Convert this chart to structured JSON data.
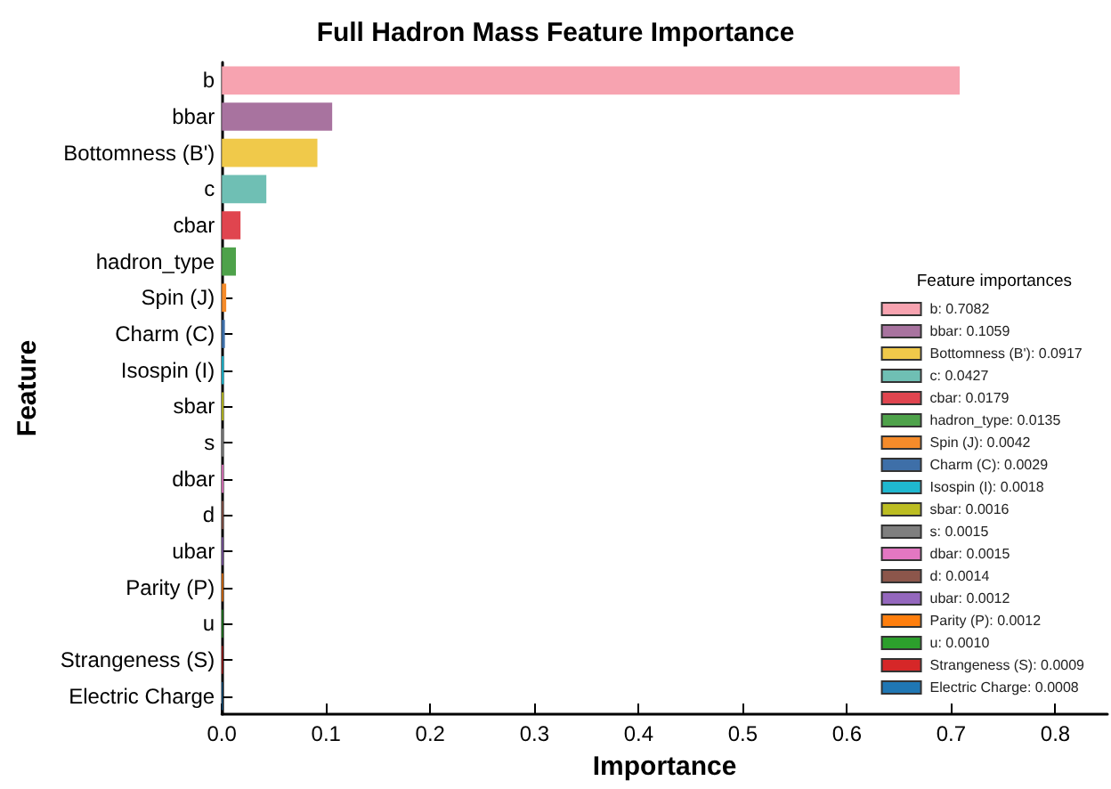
{
  "chart_data": {
    "type": "bar",
    "orientation": "horizontal",
    "title": "Full Hadron Mass Feature Importance",
    "xlabel": "Importance",
    "ylabel": "Feature",
    "legend_title": "Feature importances",
    "legend": "bottom right",
    "grid": false,
    "categories": [
      "b",
      "bbar",
      "Bottomness (B')",
      "c",
      "cbar",
      "hadron_type",
      "Spin (J)",
      "Charm (C)",
      "Isospin (I)",
      "sbar",
      "s",
      "dbar",
      "d",
      "ubar",
      "Parity (P)",
      "u",
      "Strangeness (S)",
      "Electric Charge"
    ],
    "xlim": [
      0,
      0.85
    ],
    "xticks": [
      {
        "value": 0,
        "label": "0.0"
      },
      0.1,
      0.2,
      0.3,
      0.4,
      0.5,
      0.6,
      0.7,
      0.8
    ],
    "series": [
      {
        "name": "b: 0.7082",
        "color": "#f7a3b0",
        "values": [
          0.7082,
          null,
          null,
          null,
          null,
          null,
          null,
          null,
          null,
          null,
          null,
          null,
          null,
          null,
          null,
          null,
          null,
          null
        ]
      },
      {
        "name": "bbar: 0.1059",
        "color": "#a8739f",
        "values": [
          null,
          0.1059,
          null,
          null,
          null,
          null,
          null,
          null,
          null,
          null,
          null,
          null,
          null,
          null,
          null,
          null,
          null,
          null
        ]
      },
      {
        "name": "Bottomness (B'): 0.0917",
        "color": "#f0c94a",
        "values": [
          null,
          null,
          0.0917,
          null,
          null,
          null,
          null,
          null,
          null,
          null,
          null,
          null,
          null,
          null,
          null,
          null,
          null,
          null
        ]
      },
      {
        "name": "c: 0.0427",
        "color": "#6fbfb4",
        "values": [
          null,
          null,
          null,
          0.0427,
          null,
          null,
          null,
          null,
          null,
          null,
          null,
          null,
          null,
          null,
          null,
          null,
          null,
          null
        ]
      },
      {
        "name": "cbar: 0.0179",
        "color": "#e0454f",
        "values": [
          null,
          null,
          null,
          null,
          0.0179,
          null,
          null,
          null,
          null,
          null,
          null,
          null,
          null,
          null,
          null,
          null,
          null,
          null
        ]
      },
      {
        "name": "hadron_type: 0.0135",
        "color": "#4ea24a",
        "values": [
          null,
          null,
          null,
          null,
          null,
          0.0135,
          null,
          null,
          null,
          null,
          null,
          null,
          null,
          null,
          null,
          null,
          null,
          null
        ]
      },
      {
        "name": "Spin (J): 0.0042",
        "color": "#f58b2a",
        "values": [
          null,
          null,
          null,
          null,
          null,
          null,
          0.0042,
          null,
          null,
          null,
          null,
          null,
          null,
          null,
          null,
          null,
          null,
          null
        ]
      },
      {
        "name": "Charm (C): 0.0029",
        "color": "#3e6fa8",
        "values": [
          null,
          null,
          null,
          null,
          null,
          null,
          null,
          0.0029,
          null,
          null,
          null,
          null,
          null,
          null,
          null,
          null,
          null,
          null
        ]
      },
      {
        "name": "Isospin (I): 0.0018",
        "color": "#1fb8d0",
        "values": [
          null,
          null,
          null,
          null,
          null,
          null,
          null,
          null,
          0.0018,
          null,
          null,
          null,
          null,
          null,
          null,
          null,
          null,
          null
        ]
      },
      {
        "name": "sbar: 0.0016",
        "color": "#bcbd22",
        "values": [
          null,
          null,
          null,
          null,
          null,
          null,
          null,
          null,
          null,
          0.0016,
          null,
          null,
          null,
          null,
          null,
          null,
          null,
          null
        ]
      },
      {
        "name": "s: 0.0015",
        "color": "#7f7f7f",
        "values": [
          null,
          null,
          null,
          null,
          null,
          null,
          null,
          null,
          null,
          null,
          0.0015,
          null,
          null,
          null,
          null,
          null,
          null,
          null
        ]
      },
      {
        "name": "dbar: 0.0015",
        "color": "#e377c2",
        "values": [
          null,
          null,
          null,
          null,
          null,
          null,
          null,
          null,
          null,
          null,
          null,
          0.0015,
          null,
          null,
          null,
          null,
          null,
          null
        ]
      },
      {
        "name": "d: 0.0014",
        "color": "#8c564b",
        "values": [
          null,
          null,
          null,
          null,
          null,
          null,
          null,
          null,
          null,
          null,
          null,
          null,
          0.0014,
          null,
          null,
          null,
          null,
          null
        ]
      },
      {
        "name": "ubar: 0.0012",
        "color": "#9467bd",
        "values": [
          null,
          null,
          null,
          null,
          null,
          null,
          null,
          null,
          null,
          null,
          null,
          null,
          null,
          0.0012,
          null,
          null,
          null,
          null
        ]
      },
      {
        "name": "Parity (P): 0.0012",
        "color": "#ff7f0e",
        "values": [
          null,
          null,
          null,
          null,
          null,
          null,
          null,
          null,
          null,
          null,
          null,
          null,
          null,
          null,
          0.0012,
          null,
          null,
          null
        ]
      },
      {
        "name": "u: 0.0010",
        "color": "#2ca02c",
        "values": [
          null,
          null,
          null,
          null,
          null,
          null,
          null,
          null,
          null,
          null,
          null,
          null,
          null,
          null,
          null,
          0.001,
          null,
          null
        ]
      },
      {
        "name": "Strangeness (S): 0.0009",
        "color": "#d62728",
        "values": [
          null,
          null,
          null,
          null,
          null,
          null,
          null,
          null,
          null,
          null,
          null,
          null,
          null,
          null,
          null,
          null,
          0.0009,
          null
        ]
      },
      {
        "name": "Electric Charge: 0.0008",
        "color": "#1f77b4",
        "values": [
          null,
          null,
          null,
          null,
          null,
          null,
          null,
          null,
          null,
          null,
          null,
          null,
          null,
          null,
          null,
          null,
          null,
          0.0008
        ]
      }
    ]
  }
}
